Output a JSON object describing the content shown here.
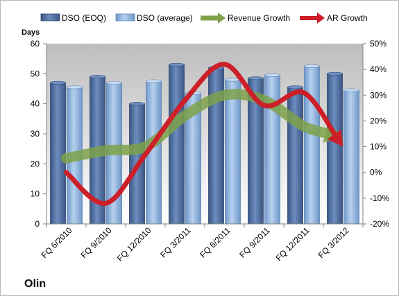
{
  "chart_data": {
    "type": "bar",
    "company_label": "Olin",
    "ylabel": "Days",
    "categories": [
      "FQ 6/2010",
      "FQ 9/2010",
      "FQ 12/2010",
      "FQ 3/2011",
      "FQ 6/2011",
      "FQ 9/2011",
      "FQ 12/2011",
      "FQ 3/2012"
    ],
    "ylim": [
      0,
      60
    ],
    "yticks": [
      0,
      10,
      20,
      30,
      40,
      50,
      60
    ],
    "y2lim": [
      -20,
      50
    ],
    "y2ticks": [
      -20,
      -10,
      0,
      10,
      20,
      30,
      40,
      50
    ],
    "y2tick_labels": [
      "-20%",
      "-10%",
      "0%",
      "10%",
      "20%",
      "30%",
      "40%",
      "50%"
    ],
    "series": [
      {
        "name": "DSO (EOQ)",
        "kind": "bar",
        "axis": "left",
        "color": "#4f6f9f",
        "values": [
          47,
          49,
          40,
          53,
          52,
          48.5,
          45.5,
          50
        ]
      },
      {
        "name": "DSO (average)",
        "kind": "bar",
        "axis": "left",
        "color": "#8fb3de",
        "values": [
          45.5,
          47,
          47.5,
          43.5,
          48,
          49.5,
          52.5,
          44.5
        ]
      },
      {
        "name": "Revenue Growth",
        "kind": "arrow-line",
        "axis": "right",
        "color": "#7ea14a",
        "values": [
          5.5,
          8.5,
          10,
          22,
          30,
          28,
          18,
          13.5
        ]
      },
      {
        "name": "AR Growth",
        "kind": "arrow-line",
        "axis": "right",
        "color": "#cc1f27",
        "values": [
          0,
          -12,
          7,
          28,
          42,
          26,
          31,
          10
        ]
      }
    ],
    "grid": false,
    "legend": "top"
  }
}
